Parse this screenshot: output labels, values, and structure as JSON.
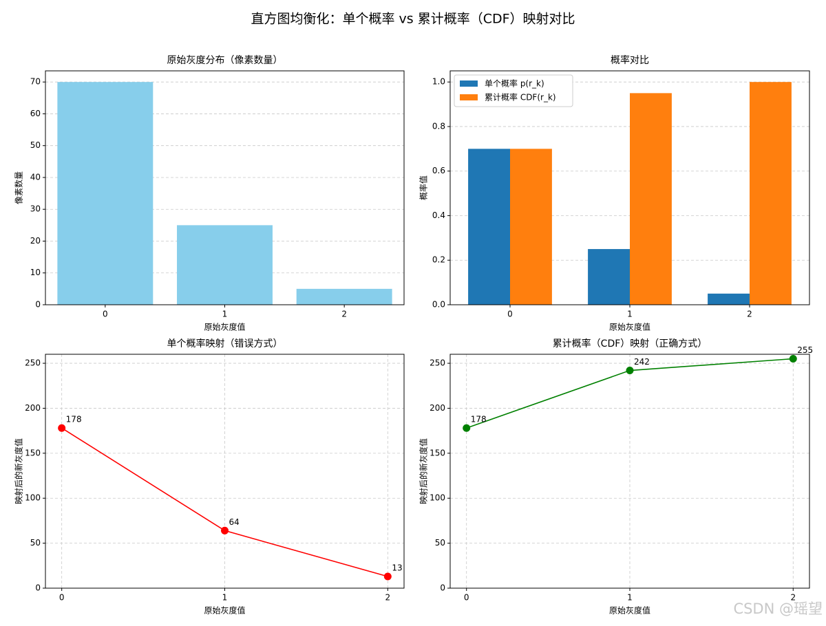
{
  "title": "直方图均衡化：单个概率 vs 累计概率（CDF）映射对比",
  "watermark": "CSDN @瑶望",
  "chart_data": [
    {
      "type": "bar",
      "title": "原始灰度分布（像素数量）",
      "xlabel": "原始灰度值",
      "ylabel": "像素数量",
      "categories": [
        "0",
        "1",
        "2"
      ],
      "values": [
        70,
        25,
        5
      ],
      "color": "#87ceeb",
      "ylim": [
        0,
        73.5
      ],
      "yticks": [
        0,
        10,
        20,
        30,
        40,
        50,
        60,
        70
      ],
      "grid": "y"
    },
    {
      "type": "bar",
      "title": "概率对比",
      "xlabel": "原始灰度值",
      "ylabel": "概率值",
      "categories": [
        "0",
        "1",
        "2"
      ],
      "series": [
        {
          "name": "单个概率 p(r_k)",
          "color": "#1f77b4",
          "values": [
            0.7,
            0.25,
            0.05
          ]
        },
        {
          "name": "累计概率 CDF(r_k)",
          "color": "#ff7f0e",
          "values": [
            0.7,
            0.95,
            1.0
          ]
        }
      ],
      "ylim": [
        0,
        1.05
      ],
      "yticks": [
        {
          "value": 0,
          "label": "0.0"
        },
        0.2,
        0.4,
        0.6,
        0.8,
        {
          "value": 1,
          "label": "1.0"
        }
      ],
      "grid": "y",
      "legend": "upper-left"
    },
    {
      "type": "line",
      "title": "单个概率映射（错误方式）",
      "xlabel": "原始灰度值",
      "ylabel": "映射后的新灰度值",
      "x": [
        0,
        1,
        2
      ],
      "values": [
        178,
        64,
        13
      ],
      "color": "#ff0000",
      "xlim": [
        -0.1,
        2.1
      ],
      "xticks": [
        0,
        1,
        2
      ],
      "ylim": [
        0,
        260
      ],
      "yticks": [
        0,
        50,
        100,
        150,
        200,
        250
      ],
      "grid": "both"
    },
    {
      "type": "line",
      "title": "累计概率（CDF）映射（正确方式）",
      "xlabel": "原始灰度值",
      "ylabel": "映射后的新灰度值",
      "x": [
        0,
        1,
        2
      ],
      "values": [
        178,
        242,
        255
      ],
      "color": "#008000",
      "xlim": [
        -0.1,
        2.1
      ],
      "xticks": [
        0,
        1,
        2
      ],
      "ylim": [
        0,
        260
      ],
      "yticks": [
        0,
        50,
        100,
        150,
        200,
        250
      ],
      "grid": "both"
    }
  ]
}
